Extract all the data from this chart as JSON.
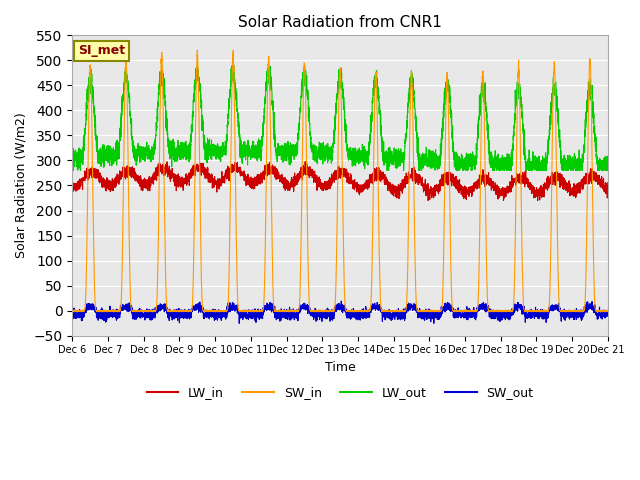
{
  "title": "Solar Radiation from CNR1",
  "ylabel": "Solar Radiation (W/m2)",
  "xlabel": "Time",
  "ylim": [
    -50,
    550
  ],
  "yticks": [
    -50,
    0,
    50,
    100,
    150,
    200,
    250,
    300,
    350,
    400,
    450,
    500,
    550
  ],
  "annotation_text": "SI_met",
  "colors": {
    "LW_in": "#cc0000",
    "SW_in": "#ff9900",
    "LW_out": "#00cc00",
    "SW_out": "#0000cc"
  },
  "background_color": "#e8e8e8",
  "fig_background": "#ffffff",
  "n_days": 15,
  "points_per_day": 288,
  "start_day": 6
}
